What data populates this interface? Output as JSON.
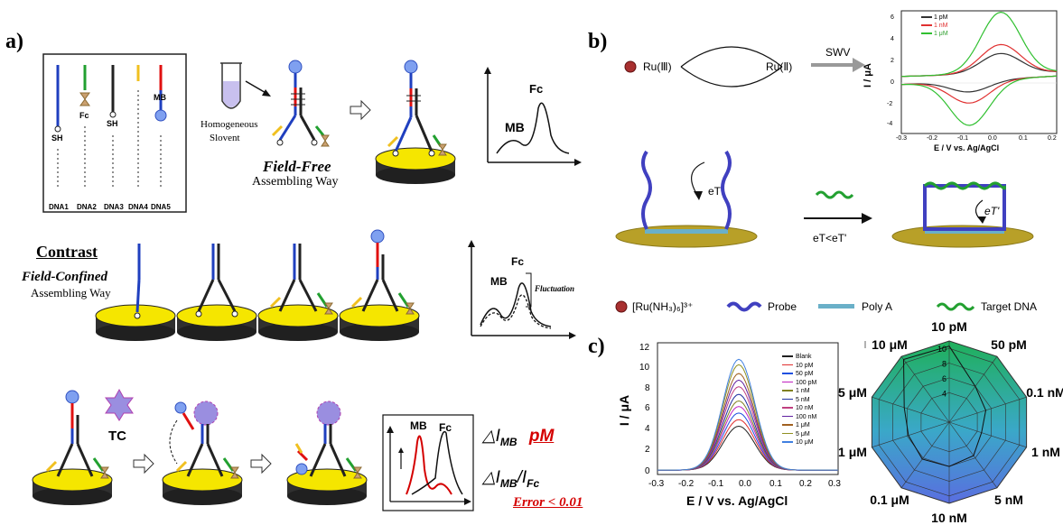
{
  "panel_a": {
    "label": "a)",
    "dna_strands": [
      "DNA1",
      "DNA2",
      "DNA3",
      "DNA4",
      "DNA5"
    ],
    "strand_tags": {
      "sh1": "SH",
      "fc": "Fc",
      "sh3": "SH",
      "mb": "MB"
    },
    "solvent_label_1": "Homogeneous",
    "solvent_label_2": "Slovent",
    "field_free_title": "Field-Free",
    "field_free_sub": "Assembling Way",
    "plot1": {
      "mb": "MB",
      "fc": "Fc"
    },
    "contrast_title": "Contrast",
    "field_confined_title": "Field-Confined",
    "field_confined_sub": "Assembling Way",
    "plot2": {
      "mb": "MB",
      "fc": "Fc",
      "fluct": "Fluctuation"
    },
    "tc_label": "TC",
    "plot3": {
      "mb": "MB",
      "fc": "Fc"
    },
    "metric1": "△I",
    "metric1_sub": "MB",
    "metric1_unit": "pM",
    "metric2": "△I",
    "metric2_sub": "MB",
    "metric2_slash": "/I",
    "metric2_sub2": "Fc",
    "error_text": "Error < 0.01",
    "colors": {
      "blue": "#1f3fbf",
      "red": "#e01010",
      "green": "#22a030",
      "yellow": "#f0c020",
      "gold": "#f5e600",
      "accent_red": "#d40000"
    }
  },
  "panel_b": {
    "label": "b)",
    "ru3": "Ru(Ⅲ)",
    "ru2": "Ru(Ⅱ)",
    "swv": "SWV",
    "cv_plot": {
      "ylabel": "I / μA",
      "xlabel": "E / V vs. Ag/AgCl",
      "xticks": [
        "-0.3",
        "-0.2",
        "-0.1",
        "0.0",
        "0.1",
        "0.2"
      ],
      "yticks": [
        "6",
        "4",
        "2",
        "0",
        "-2",
        "-4"
      ],
      "legend": [
        "1 pM",
        "1 nM",
        "1 μM"
      ],
      "legend_colors": [
        "#333333",
        "#e03030",
        "#30c030"
      ]
    },
    "et1": "eT",
    "et_compare": "eT<eT'",
    "et2": "eT'",
    "legend_items": [
      "[Ru(NH₃)₆]³⁺",
      "Probe",
      "Poly A",
      "Target DNA"
    ]
  },
  "panel_c": {
    "label": "c)",
    "dpv_plot": {
      "ylabel": "I / μA",
      "xlabel": "E / V vs. Ag/AgCl",
      "xticks": [
        "-0.3",
        "-0.2",
        "-0.1",
        "0.0",
        "0.1",
        "0.2",
        "0.3"
      ],
      "yticks": [
        "12",
        "10",
        "8",
        "6",
        "4",
        "2",
        "0"
      ],
      "legend": [
        "Blank",
        "10 pM",
        "50 pM",
        "100 pM",
        "1 nM",
        "5 nM",
        "10 nM",
        "100 nM",
        "1 μM",
        "5 μM",
        "10 μM"
      ]
    },
    "radar": {
      "labels": [
        "10 pM",
        "50 pM",
        "0.1 nM",
        "1 nM",
        "5 nM",
        "10 nM",
        "0.1 μM",
        "1 μM",
        "5 μM",
        "10 μM"
      ],
      "ring_ticks": [
        "10",
        "8",
        "6",
        "4"
      ]
    }
  },
  "chart_data": [
    {
      "type": "line",
      "title": "",
      "xlabel": "E / V vs. Ag/AgCl",
      "ylabel": "I / μA",
      "xlim": [
        -0.3,
        0.2
      ],
      "ylim": [
        -5,
        6
      ],
      "series": [
        {
          "name": "1 pM",
          "peak_ox": 1.8,
          "peak_red": -1.0,
          "color": "#333333"
        },
        {
          "name": "1 nM",
          "peak_ox": 2.6,
          "peak_red": -2.0,
          "color": "#e03030"
        },
        {
          "name": "1 μM",
          "peak_ox": 5.5,
          "peak_red": -4.0,
          "color": "#30c030"
        }
      ]
    },
    {
      "type": "line",
      "title": "",
      "xlabel": "E / V vs. Ag/AgCl",
      "ylabel": "I / μA",
      "xlim": [
        -0.3,
        0.3
      ],
      "ylim": [
        0,
        12
      ],
      "peak_x": -0.03,
      "series": [
        {
          "name": "Blank",
          "peak": 4.4,
          "color": "#202020"
        },
        {
          "name": "10 pM",
          "peak": 5.0,
          "color": "#e03030"
        },
        {
          "name": "50 pM",
          "peak": 5.6,
          "color": "#2050e0"
        },
        {
          "name": "100 pM",
          "peak": 6.2,
          "color": "#c020c0"
        },
        {
          "name": "1 nM",
          "peak": 6.7,
          "color": "#808020"
        },
        {
          "name": "5 nM",
          "peak": 7.3,
          "color": "#2030a0"
        },
        {
          "name": "10 nM",
          "peak": 8.0,
          "color": "#c04080"
        },
        {
          "name": "100 nM",
          "peak": 8.6,
          "color": "#6020a0"
        },
        {
          "name": "1 μM",
          "peak": 9.2,
          "color": "#a06020"
        },
        {
          "name": "5 μM",
          "peak": 10.0,
          "color": "#909020"
        },
        {
          "name": "10 μM",
          "peak": 10.5,
          "color": "#4080e0"
        }
      ]
    },
    {
      "type": "radar",
      "title": "",
      "categories": [
        "10 pM",
        "50 pM",
        "0.1 nM",
        "1 nM",
        "5 nM",
        "10 nM",
        "0.1 μM",
        "1 μM",
        "5 μM",
        "10 μM"
      ],
      "ring_values": [
        4,
        6,
        8,
        10
      ],
      "values": [
        10.3,
        6.0,
        5.2,
        4.6,
        5.6,
        6.0,
        6.2,
        5.8,
        6.4,
        10.5
      ]
    }
  ]
}
